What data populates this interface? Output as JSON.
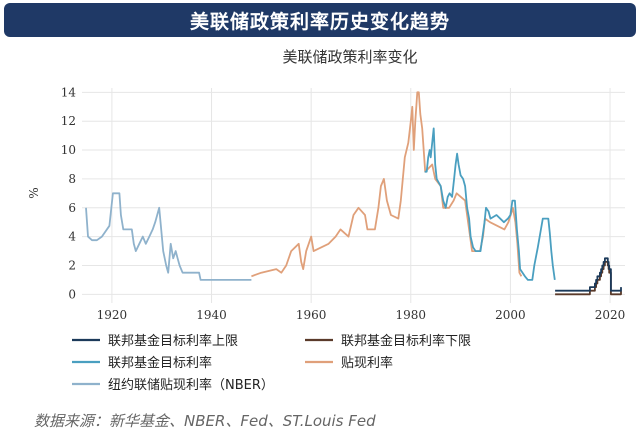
{
  "banner": {
    "title": "美联储政策利率历史变化趋势"
  },
  "source": {
    "text": "数据来源：新华基金、NBER、Fed、ST.Louis Fed"
  },
  "chart_data": {
    "type": "line",
    "title": "美联储政策利率变化",
    "xlabel": "",
    "ylabel": "%",
    "xlim": [
      1914,
      2023
    ],
    "ylim": [
      -0.6,
      14.3
    ],
    "x_ticks": [
      1920,
      1940,
      1960,
      1980,
      2000,
      2020
    ],
    "y_ticks": [
      0,
      2,
      4,
      6,
      8,
      10,
      12,
      14
    ],
    "grid": true,
    "legend_position": "bottom",
    "series": [
      {
        "name": "联邦基金目标利率上限",
        "color": "#1c3a5a",
        "points": [
          [
            2008.96,
            0.25
          ],
          [
            2015.96,
            0.25
          ],
          [
            2015.96,
            0.5
          ],
          [
            2016.96,
            0.5
          ],
          [
            2016.96,
            0.75
          ],
          [
            2017.2,
            0.75
          ],
          [
            2017.2,
            1.0
          ],
          [
            2017.45,
            1.0
          ],
          [
            2017.45,
            1.25
          ],
          [
            2017.96,
            1.25
          ],
          [
            2017.96,
            1.5
          ],
          [
            2018.2,
            1.5
          ],
          [
            2018.2,
            1.75
          ],
          [
            2018.45,
            1.75
          ],
          [
            2018.45,
            2.0
          ],
          [
            2018.7,
            2.0
          ],
          [
            2018.7,
            2.25
          ],
          [
            2018.96,
            2.25
          ],
          [
            2018.96,
            2.5
          ],
          [
            2019.55,
            2.5
          ],
          [
            2019.55,
            2.25
          ],
          [
            2019.7,
            2.25
          ],
          [
            2019.7,
            2.0
          ],
          [
            2019.83,
            2.0
          ],
          [
            2019.83,
            1.75
          ],
          [
            2020.17,
            1.75
          ],
          [
            2020.17,
            0.25
          ],
          [
            2022.2,
            0.25
          ],
          [
            2022.2,
            0.5
          ]
        ]
      },
      {
        "name": "联邦基金目标利率下限",
        "color": "#5a3a2a",
        "points": [
          [
            2008.96,
            0
          ],
          [
            2015.96,
            0
          ],
          [
            2015.96,
            0.25
          ],
          [
            2016.96,
            0.25
          ],
          [
            2016.96,
            0.5
          ],
          [
            2017.2,
            0.5
          ],
          [
            2017.2,
            0.75
          ],
          [
            2017.45,
            0.75
          ],
          [
            2017.45,
            1.0
          ],
          [
            2017.96,
            1.0
          ],
          [
            2017.96,
            1.25
          ],
          [
            2018.2,
            1.25
          ],
          [
            2018.2,
            1.5
          ],
          [
            2018.45,
            1.5
          ],
          [
            2018.45,
            1.75
          ],
          [
            2018.7,
            1.75
          ],
          [
            2018.7,
            2.0
          ],
          [
            2018.96,
            2.0
          ],
          [
            2018.96,
            2.25
          ],
          [
            2019.55,
            2.25
          ],
          [
            2019.55,
            2.0
          ],
          [
            2019.7,
            2.0
          ],
          [
            2019.7,
            1.75
          ],
          [
            2019.83,
            1.75
          ],
          [
            2019.83,
            1.5
          ],
          [
            2020.17,
            1.5
          ],
          [
            2020.17,
            0
          ],
          [
            2022.2,
            0
          ],
          [
            2022.2,
            0.25
          ]
        ]
      },
      {
        "name": "联邦基金目标利率",
        "color": "#4a9fc0",
        "points": [
          [
            1982.8,
            8.5
          ],
          [
            1983.2,
            8.5
          ],
          [
            1983.5,
            9.5
          ],
          [
            1983.8,
            10.0
          ],
          [
            1984.0,
            9.5
          ],
          [
            1984.3,
            10.5
          ],
          [
            1984.6,
            11.5
          ],
          [
            1984.9,
            9.0
          ],
          [
            1985.2,
            8.0
          ],
          [
            1985.6,
            7.75
          ],
          [
            1986.0,
            7.5
          ],
          [
            1986.5,
            6.5
          ],
          [
            1987.0,
            6.0
          ],
          [
            1987.4,
            6.75
          ],
          [
            1987.8,
            7.0
          ],
          [
            1988.3,
            6.75
          ],
          [
            1988.7,
            8.0
          ],
          [
            1989.0,
            9.0
          ],
          [
            1989.3,
            9.75
          ],
          [
            1989.6,
            9.0
          ],
          [
            1990.0,
            8.25
          ],
          [
            1990.5,
            8.0
          ],
          [
            1990.9,
            7.5
          ],
          [
            1991.3,
            6.0
          ],
          [
            1991.7,
            5.25
          ],
          [
            1992.0,
            4.0
          ],
          [
            1992.5,
            3.25
          ],
          [
            1993.0,
            3.0
          ],
          [
            1994.0,
            3.0
          ],
          [
            1994.4,
            4.0
          ],
          [
            1994.8,
            5.0
          ],
          [
            1995.1,
            6.0
          ],
          [
            1995.6,
            5.75
          ],
          [
            1996.0,
            5.25
          ],
          [
            1997.2,
            5.5
          ],
          [
            1998.7,
            5.0
          ],
          [
            1999.5,
            5.25
          ],
          [
            2000.0,
            5.5
          ],
          [
            2000.4,
            6.5
          ],
          [
            2000.9,
            6.5
          ],
          [
            2001.0,
            6.0
          ],
          [
            2001.3,
            4.5
          ],
          [
            2001.7,
            3.0
          ],
          [
            2001.95,
            1.75
          ],
          [
            2002.9,
            1.25
          ],
          [
            2003.5,
            1.0
          ],
          [
            2004.4,
            1.0
          ],
          [
            2004.8,
            2.0
          ],
          [
            2005.5,
            3.25
          ],
          [
            2006.0,
            4.25
          ],
          [
            2006.5,
            5.25
          ],
          [
            2007.6,
            5.25
          ],
          [
            2007.9,
            4.25
          ],
          [
            2008.2,
            3.0
          ],
          [
            2008.5,
            2.0
          ],
          [
            2008.9,
            1.0
          ]
        ]
      },
      {
        "name": "贴现利率",
        "color": "#e0a07a",
        "points": [
          [
            1948.0,
            1.25
          ],
          [
            1950.0,
            1.5
          ],
          [
            1953.0,
            1.75
          ],
          [
            1954.0,
            1.5
          ],
          [
            1955.0,
            2.0
          ],
          [
            1956.0,
            3.0
          ],
          [
            1957.5,
            3.5
          ],
          [
            1958.0,
            2.25
          ],
          [
            1958.4,
            1.75
          ],
          [
            1959.0,
            3.0
          ],
          [
            1959.5,
            3.5
          ],
          [
            1960.0,
            4.0
          ],
          [
            1960.5,
            3.0
          ],
          [
            1963.5,
            3.5
          ],
          [
            1964.9,
            4.0
          ],
          [
            1965.9,
            4.5
          ],
          [
            1967.5,
            4.0
          ],
          [
            1968.5,
            5.5
          ],
          [
            1969.5,
            6.0
          ],
          [
            1970.8,
            5.5
          ],
          [
            1971.3,
            4.5
          ],
          [
            1972.8,
            4.5
          ],
          [
            1973.5,
            6.0
          ],
          [
            1974.0,
            7.5
          ],
          [
            1974.6,
            8.0
          ],
          [
            1975.2,
            6.5
          ],
          [
            1976.0,
            5.5
          ],
          [
            1977.5,
            5.25
          ],
          [
            1978.0,
            6.5
          ],
          [
            1978.8,
            9.5
          ],
          [
            1979.5,
            10.5
          ],
          [
            1980.0,
            12.0
          ],
          [
            1980.3,
            13.0
          ],
          [
            1980.6,
            10.0
          ],
          [
            1980.9,
            12.0
          ],
          [
            1981.3,
            14.0
          ],
          [
            1981.6,
            14.0
          ],
          [
            1981.9,
            12.5
          ],
          [
            1982.3,
            11.5
          ],
          [
            1982.7,
            9.5
          ],
          [
            1982.9,
            8.5
          ],
          [
            1984.3,
            9.0
          ],
          [
            1984.9,
            8.0
          ],
          [
            1986.0,
            7.5
          ],
          [
            1986.5,
            6.0
          ],
          [
            1987.7,
            6.0
          ],
          [
            1988.6,
            6.5
          ],
          [
            1989.2,
            7.0
          ],
          [
            1990.9,
            6.5
          ],
          [
            1991.5,
            5.0
          ],
          [
            1991.9,
            4.0
          ],
          [
            1992.3,
            3.0
          ],
          [
            1993.9,
            3.0
          ],
          [
            1994.5,
            4.0
          ],
          [
            1994.9,
            5.25
          ],
          [
            1995.9,
            5.0
          ],
          [
            1998.8,
            4.5
          ],
          [
            1999.6,
            5.0
          ],
          [
            2000.5,
            6.0
          ],
          [
            2001.0,
            5.0
          ],
          [
            2001.4,
            3.5
          ],
          [
            2001.8,
            1.5
          ],
          [
            2002.2,
            1.25
          ]
        ]
      },
      {
        "name": "纽约联储贴现利率（NBER）",
        "color": "#8fb2cc",
        "points": [
          [
            1914.8,
            6.0
          ],
          [
            1915.2,
            4.0
          ],
          [
            1916.0,
            3.75
          ],
          [
            1917.0,
            3.75
          ],
          [
            1918.0,
            4.0
          ],
          [
            1919.5,
            4.75
          ],
          [
            1920.2,
            7.0
          ],
          [
            1921.5,
            7.0
          ],
          [
            1921.8,
            5.5
          ],
          [
            1922.3,
            4.5
          ],
          [
            1923.2,
            4.5
          ],
          [
            1924.0,
            4.5
          ],
          [
            1924.4,
            3.5
          ],
          [
            1924.8,
            3.0
          ],
          [
            1925.5,
            3.5
          ],
          [
            1926.2,
            4.0
          ],
          [
            1926.8,
            3.5
          ],
          [
            1927.5,
            4.0
          ],
          [
            1928.2,
            4.5
          ],
          [
            1928.7,
            5.0
          ],
          [
            1929.5,
            6.0
          ],
          [
            1929.9,
            4.5
          ],
          [
            1930.3,
            3.0
          ],
          [
            1930.9,
            2.0
          ],
          [
            1931.3,
            1.5
          ],
          [
            1931.8,
            3.5
          ],
          [
            1932.3,
            2.5
          ],
          [
            1932.8,
            3.0
          ],
          [
            1933.2,
            2.5
          ],
          [
            1933.6,
            2.0
          ],
          [
            1934.2,
            1.5
          ],
          [
            1937.5,
            1.5
          ],
          [
            1937.8,
            1.0
          ],
          [
            1948.0,
            1.0
          ]
        ]
      }
    ]
  }
}
